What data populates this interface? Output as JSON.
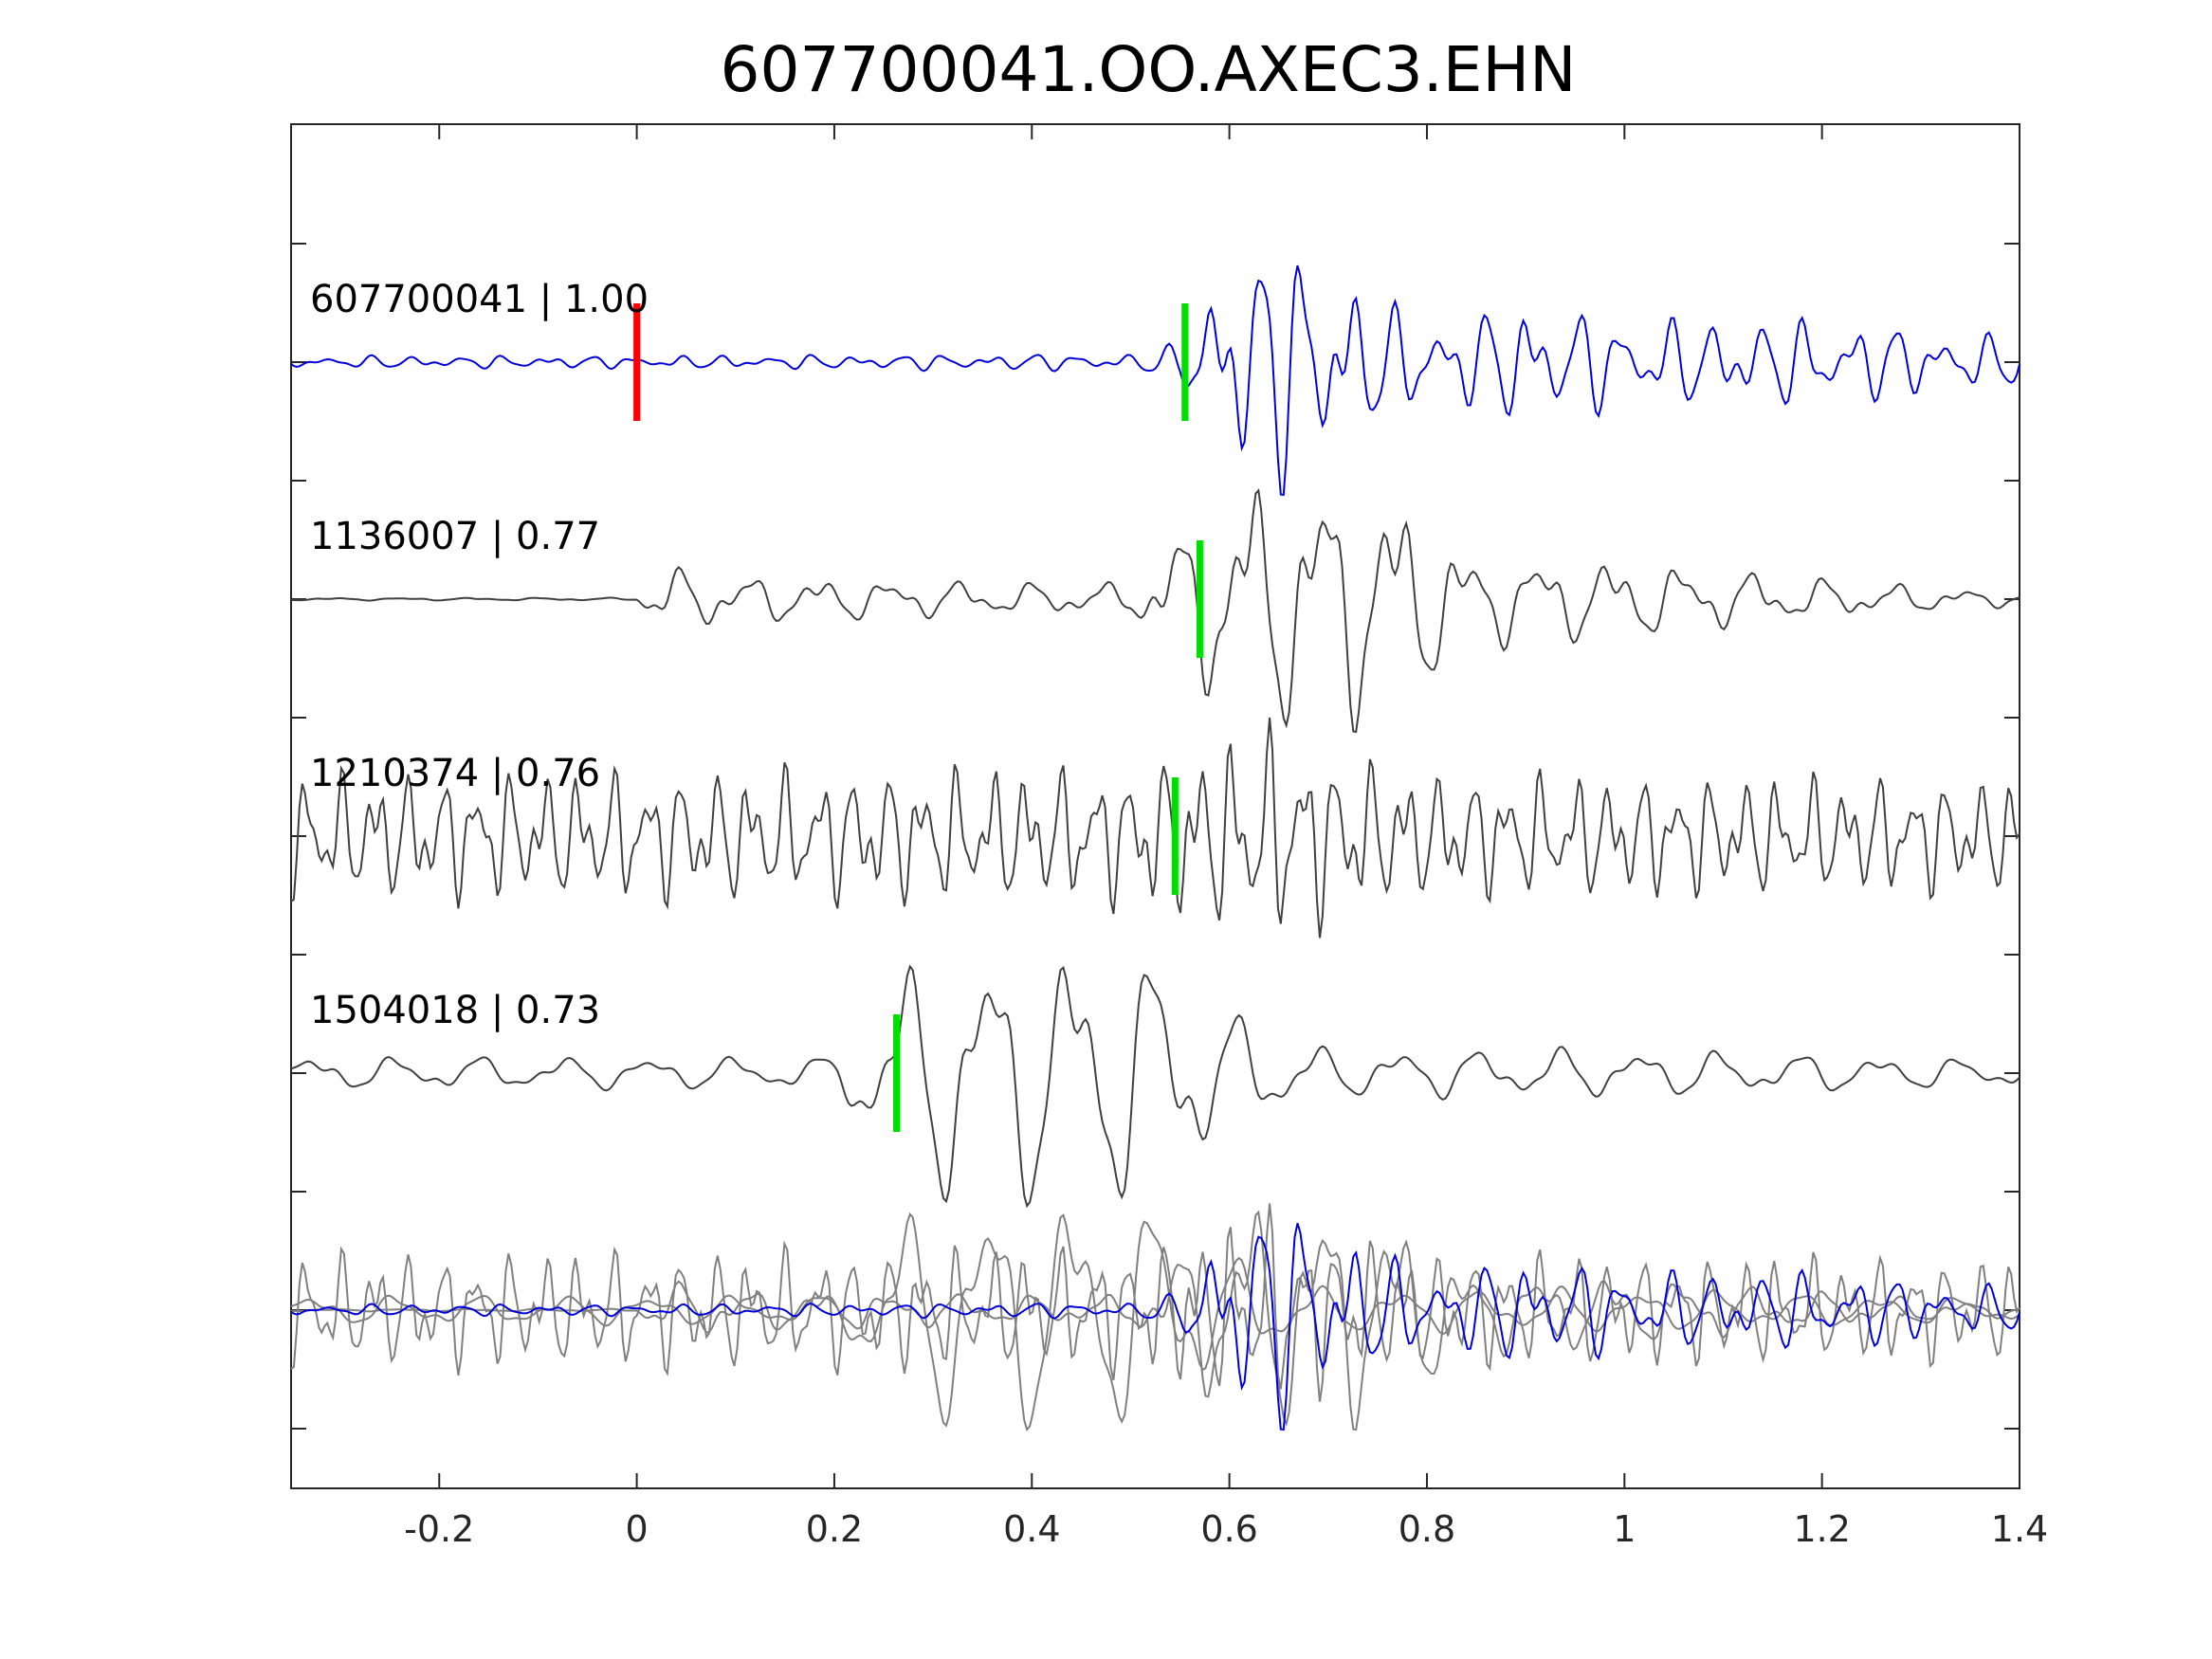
{
  "chart_data": {
    "type": "line",
    "title": "607700041.OO.AXEC3.EHN",
    "xlabel": "",
    "ylabel": "",
    "xlim": [
      -0.35,
      1.4
    ],
    "x_ticks": [
      -0.2,
      0,
      0.2,
      0.4,
      0.6,
      0.8,
      1,
      1.2,
      1.4
    ],
    "x_tick_labels": [
      "-0.2",
      "0",
      "0.2",
      "0.4",
      "0.6",
      "0.8",
      "1",
      "1.2",
      "1.4"
    ],
    "grid": false,
    "colors": {
      "master": "#0000dd",
      "template": "#404040",
      "overlay_template": "#808080",
      "red_pick": "#ff0000",
      "green_pick": "#00dd00"
    },
    "series": [
      {
        "id": "607700041",
        "label": "607700041 | 1.00",
        "correlation": 1.0,
        "role": "master",
        "red_pick": 0.0,
        "green_pick": 0.555,
        "envelope": [
          [
            -0.35,
            0.05
          ],
          [
            0.0,
            0.05
          ],
          [
            0.5,
            0.07
          ],
          [
            0.55,
            0.15
          ],
          [
            0.58,
            0.8
          ],
          [
            0.62,
            0.95
          ],
          [
            0.68,
            1.0
          ],
          [
            0.76,
            0.45
          ],
          [
            0.82,
            0.35
          ],
          [
            0.9,
            0.5
          ],
          [
            1.0,
            0.35
          ],
          [
            1.2,
            0.35
          ],
          [
            1.4,
            0.2
          ]
        ],
        "components": [
          [
            22.0,
            1.0
          ],
          [
            31.0,
            0.6
          ],
          [
            47.0,
            0.35
          ]
        ]
      },
      {
        "id": "1136007",
        "label": "1136007 | 0.77",
        "correlation": 0.77,
        "role": "template",
        "green_pick": 0.57,
        "envelope": [
          [
            -0.35,
            0.01
          ],
          [
            0.0,
            0.01
          ],
          [
            0.02,
            0.25
          ],
          [
            0.1,
            0.18
          ],
          [
            0.4,
            0.12
          ],
          [
            0.5,
            0.12
          ],
          [
            0.55,
            0.5
          ],
          [
            0.6,
            0.9
          ],
          [
            0.7,
            1.0
          ],
          [
            0.78,
            0.8
          ],
          [
            0.84,
            0.35
          ],
          [
            1.0,
            0.3
          ],
          [
            1.2,
            0.15
          ],
          [
            1.4,
            0.05
          ]
        ],
        "components": [
          [
            14.0,
            1.0
          ],
          [
            26.0,
            0.45
          ],
          [
            46.0,
            0.25
          ]
        ]
      },
      {
        "id": "1210374",
        "label": "1210374 | 0.76",
        "correlation": 0.76,
        "role": "template",
        "green_pick": 0.545,
        "envelope": [
          [
            -0.35,
            0.55
          ],
          [
            0.5,
            0.6
          ],
          [
            0.55,
            0.75
          ],
          [
            0.65,
            0.95
          ],
          [
            0.7,
            0.75
          ],
          [
            0.8,
            0.55
          ],
          [
            1.4,
            0.5
          ]
        ],
        "components": [
          [
            29.0,
            1.0
          ],
          [
            47.0,
            0.6
          ],
          [
            71.0,
            0.35
          ]
        ]
      },
      {
        "id": "1504018",
        "label": "1504018 | 0.73",
        "correlation": 0.73,
        "role": "template",
        "green_pick": 0.263,
        "envelope": [
          [
            -0.35,
            0.12
          ],
          [
            0.2,
            0.12
          ],
          [
            0.23,
            0.5
          ],
          [
            0.3,
            0.95
          ],
          [
            0.5,
            1.0
          ],
          [
            0.56,
            0.7
          ],
          [
            0.6,
            0.45
          ],
          [
            0.7,
            0.18
          ],
          [
            1.0,
            0.18
          ],
          [
            1.4,
            0.1
          ]
        ],
        "components": [
          [
            12.0,
            1.0
          ],
          [
            21.0,
            0.35
          ],
          [
            38.0,
            0.2
          ]
        ]
      }
    ]
  }
}
